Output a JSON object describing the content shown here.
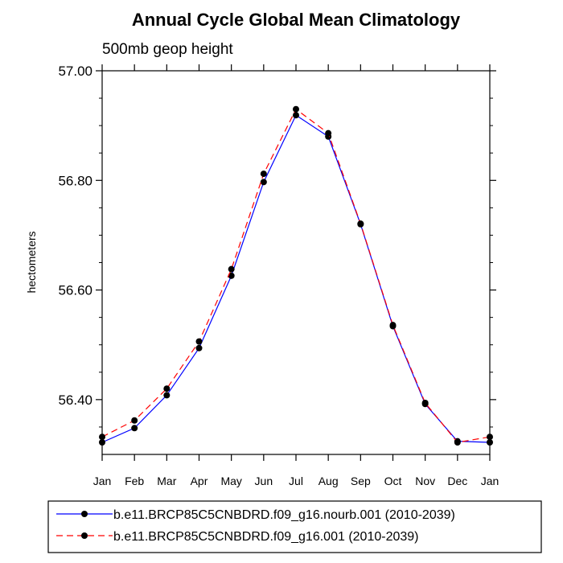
{
  "chart_data": {
    "type": "line",
    "title": "Annual Cycle Global Mean Climatology",
    "subtitle": "500mb geop height",
    "xlabel": "",
    "ylabel": "hectometers",
    "categories": [
      "Jan",
      "Feb",
      "Mar",
      "Apr",
      "May",
      "Jun",
      "Jul",
      "Aug",
      "Sep",
      "Oct",
      "Nov",
      "Dec",
      "Jan"
    ],
    "ylim": [
      56.3,
      57.0
    ],
    "yticks": [
      56.4,
      56.6,
      56.8,
      57.0
    ],
    "ytick_labels": [
      "56.40",
      "56.60",
      "56.80",
      "57.00"
    ],
    "grid": false,
    "legend_position": "bottom",
    "series": [
      {
        "name": "b.e11.BRCP85C5CNBDRD.f09_g16.nourb.001 (2010-2039)",
        "color": "#0000ff",
        "line_style": "solid",
        "marker": "circle",
        "values": [
          56.322,
          56.348,
          56.408,
          56.494,
          56.626,
          56.797,
          56.919,
          56.88,
          56.72,
          56.534,
          56.392,
          56.324,
          56.322
        ]
      },
      {
        "name": "b.e11.BRCP85C5CNBDRD.f09_g16.001 (2010-2039)",
        "color": "#ff0000",
        "line_style": "dashed",
        "marker": "circle",
        "values": [
          56.332,
          56.362,
          56.42,
          56.506,
          56.638,
          56.812,
          56.93,
          56.886,
          56.721,
          56.536,
          56.394,
          56.322,
          56.332
        ]
      }
    ]
  }
}
